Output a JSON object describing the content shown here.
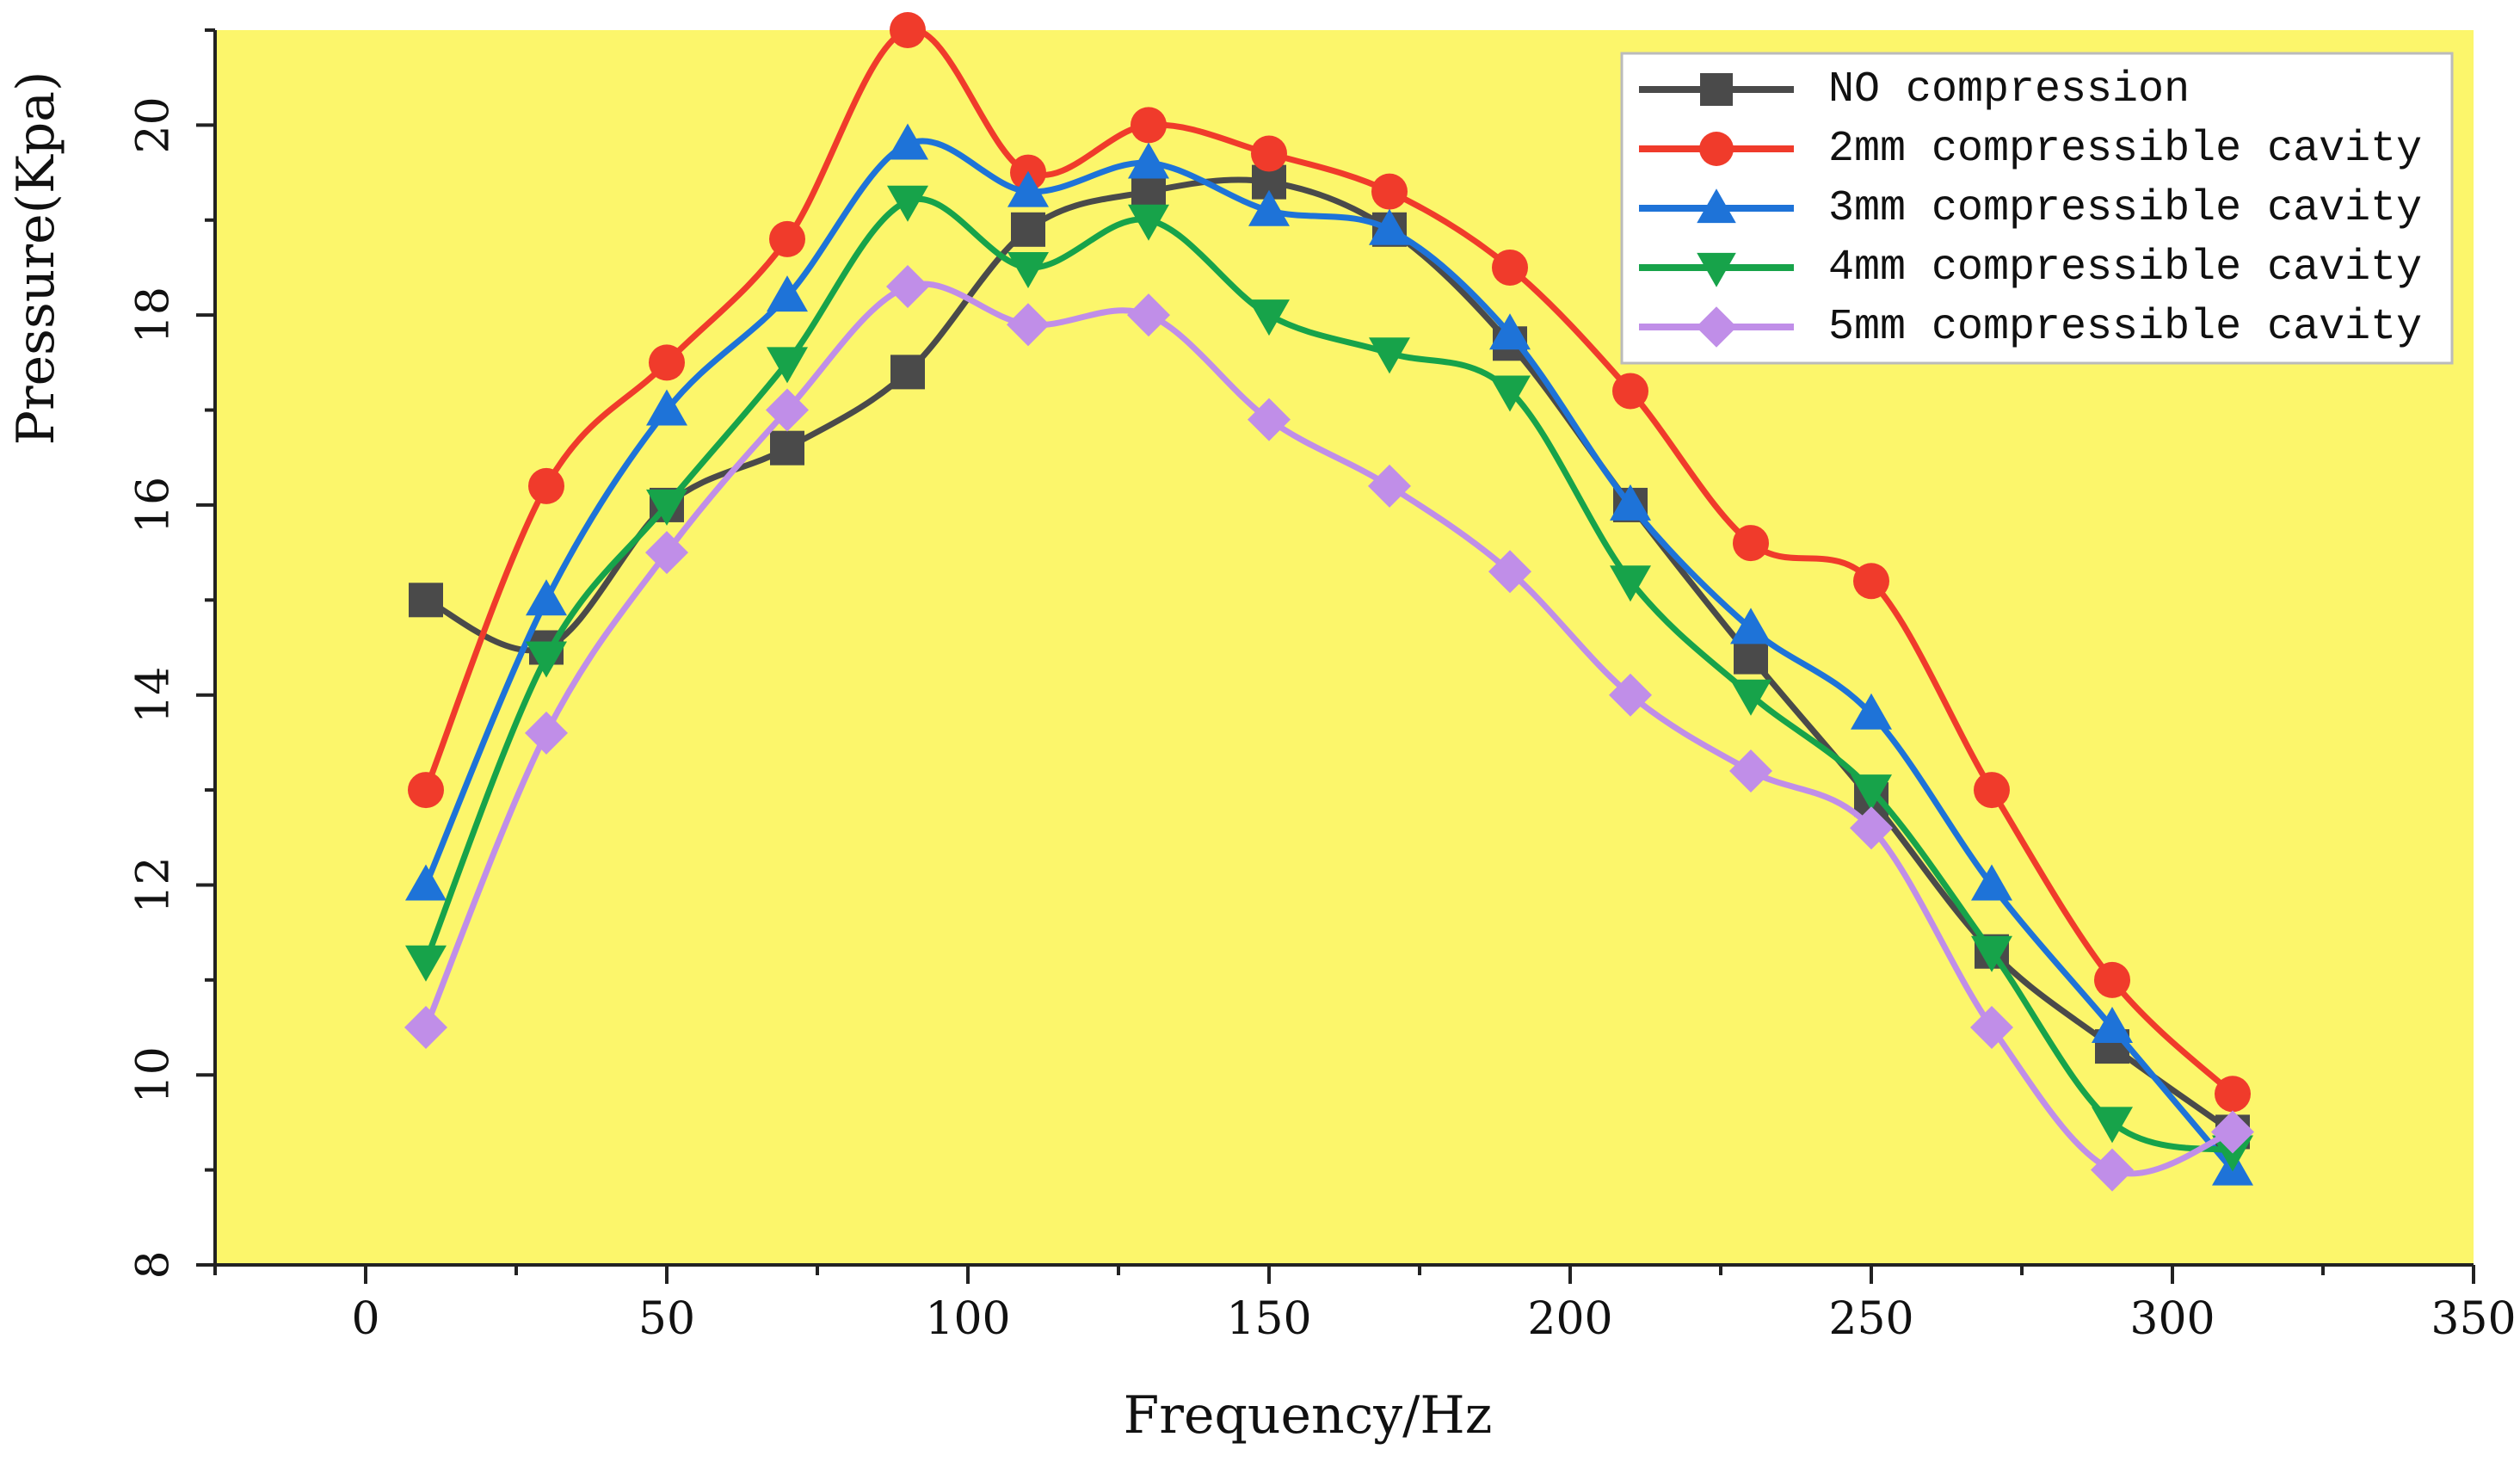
{
  "chart_data": {
    "type": "line",
    "title": "",
    "xlabel": "Frequency/Hz",
    "ylabel": "Pressure(Kpa)",
    "xlim": [
      -25,
      350
    ],
    "ylim": [
      8,
      21
    ],
    "x_ticks": [
      0,
      50,
      100,
      150,
      200,
      250,
      300,
      350
    ],
    "y_ticks": [
      8,
      10,
      12,
      14,
      16,
      18,
      20
    ],
    "background": "#fcf66b",
    "grid": false,
    "legend_position": "top-right",
    "x": [
      10,
      30,
      50,
      70,
      90,
      110,
      130,
      150,
      170,
      190,
      210,
      230,
      250,
      270,
      290,
      310
    ],
    "series": [
      {
        "name": "NO compression",
        "color": "#4a4a4a",
        "marker": "square",
        "values": [
          15.0,
          14.5,
          16.0,
          16.6,
          17.4,
          18.9,
          19.3,
          19.4,
          18.9,
          17.7,
          16.0,
          14.4,
          12.9,
          11.3,
          10.3,
          9.4
        ]
      },
      {
        "name": "2mm compressible cavity",
        "color": "#f03b2b",
        "marker": "circle",
        "values": [
          13.0,
          16.2,
          17.5,
          18.8,
          21.0,
          19.5,
          20.0,
          19.7,
          19.3,
          18.5,
          17.2,
          15.6,
          15.2,
          13.0,
          11.0,
          9.8
        ]
      },
      {
        "name": "3mm compressible cavity",
        "color": "#1e73d8",
        "marker": "triangle-up",
        "values": [
          12.0,
          15.0,
          17.0,
          18.2,
          19.8,
          19.3,
          19.6,
          19.1,
          18.9,
          17.8,
          16.0,
          14.7,
          13.8,
          12.0,
          10.5,
          9.0
        ]
      },
      {
        "name": "4mm compressible cavity",
        "color": "#17a34a",
        "marker": "triangle-down",
        "values": [
          11.2,
          14.4,
          16.0,
          17.5,
          19.2,
          18.5,
          19.0,
          18.0,
          17.6,
          17.2,
          15.2,
          14.0,
          13.0,
          11.3,
          9.5,
          9.2
        ]
      },
      {
        "name": "5mm compressible cavity",
        "color": "#c08ee8",
        "marker": "diamond",
        "values": [
          10.5,
          13.6,
          15.5,
          17.0,
          18.3,
          17.9,
          18.0,
          16.9,
          16.2,
          15.3,
          14.0,
          13.2,
          12.6,
          10.5,
          9.0,
          9.4
        ]
      }
    ]
  }
}
